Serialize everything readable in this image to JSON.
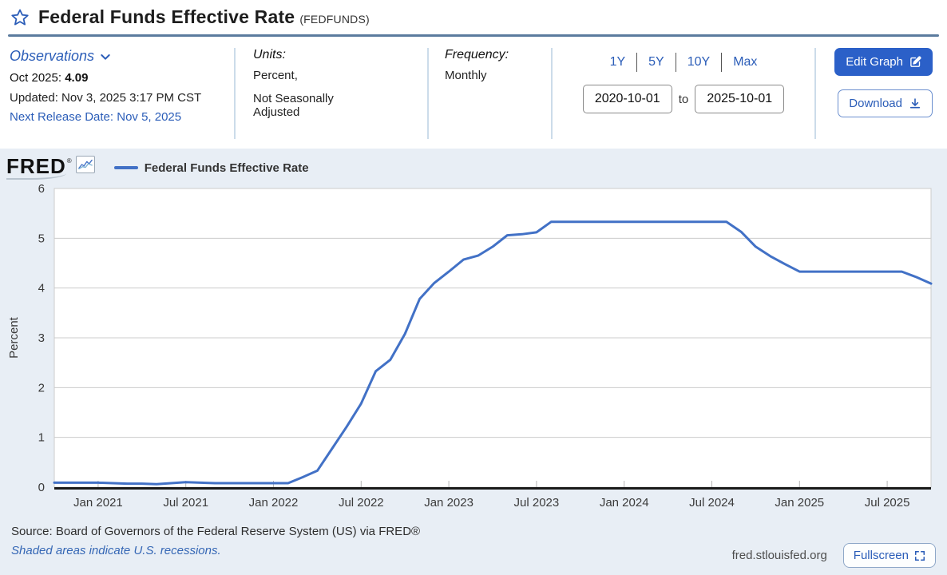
{
  "header": {
    "title": "Federal Funds Effective Rate",
    "series_id": "(FEDFUNDS)"
  },
  "observations": {
    "label": "Observations",
    "latest_period": "Oct 2025:",
    "latest_value": "4.09",
    "updated": "Updated: Nov 3, 2025 3:17 PM CST",
    "next_release": "Next Release Date: Nov 5, 2025"
  },
  "units": {
    "label": "Units:",
    "line1": "Percent,",
    "line2": "Not Seasonally Adjusted"
  },
  "frequency": {
    "label": "Frequency:",
    "value": "Monthly"
  },
  "range": {
    "presets": [
      "1Y",
      "5Y",
      "10Y",
      "Max"
    ],
    "start_date": "2020-10-01",
    "to_label": "to",
    "end_date": "2025-10-01"
  },
  "actions": {
    "edit_graph": "Edit Graph",
    "download": "Download"
  },
  "chart": {
    "brand": "FRED",
    "reg_mark": "®",
    "legend_label": "Federal Funds Effective Rate"
  },
  "footer": {
    "source": "Source: Board of Governors of the Federal Reserve System (US) via FRED®",
    "recessions_note": "Shaded areas indicate U.S. recessions.",
    "site": "fred.stlouisfed.org",
    "fullscreen_label": "Fullscreen"
  },
  "colors": {
    "line": "#4271c6",
    "link_blue": "#2b5db8",
    "button_blue": "#2b60c8",
    "slate_divider": "#5b7b9e",
    "chart_bg": "#e8eef5",
    "grid": "#cccccc",
    "axis": "#1a1a1a",
    "tick_text": "#3a3a3a"
  },
  "chart_data": {
    "type": "line",
    "title": "Federal Funds Effective Rate",
    "ylabel": "Percent",
    "ylim": [
      0,
      6
    ],
    "yticks": [
      0,
      1,
      2,
      3,
      4,
      5,
      6
    ],
    "grid": true,
    "legend_position": "top-left",
    "x": [
      "2020-10",
      "2020-11",
      "2020-12",
      "2021-01",
      "2021-02",
      "2021-03",
      "2021-04",
      "2021-05",
      "2021-06",
      "2021-07",
      "2021-08",
      "2021-09",
      "2021-10",
      "2021-11",
      "2021-12",
      "2022-01",
      "2022-02",
      "2022-03",
      "2022-04",
      "2022-05",
      "2022-06",
      "2022-07",
      "2022-08",
      "2022-09",
      "2022-10",
      "2022-11",
      "2022-12",
      "2023-01",
      "2023-02",
      "2023-03",
      "2023-04",
      "2023-05",
      "2023-06",
      "2023-07",
      "2023-08",
      "2023-09",
      "2023-10",
      "2023-11",
      "2023-12",
      "2024-01",
      "2024-02",
      "2024-03",
      "2024-04",
      "2024-05",
      "2024-06",
      "2024-07",
      "2024-08",
      "2024-09",
      "2024-10",
      "2024-11",
      "2024-12",
      "2025-01",
      "2025-02",
      "2025-03",
      "2025-04",
      "2025-05",
      "2025-06",
      "2025-07",
      "2025-08",
      "2025-09",
      "2025-10"
    ],
    "values": [
      0.09,
      0.09,
      0.09,
      0.09,
      0.08,
      0.07,
      0.07,
      0.06,
      0.08,
      0.1,
      0.09,
      0.08,
      0.08,
      0.08,
      0.08,
      0.08,
      0.08,
      0.2,
      0.33,
      0.77,
      1.21,
      1.68,
      2.33,
      2.56,
      3.08,
      3.78,
      4.1,
      4.33,
      4.57,
      4.65,
      4.83,
      5.06,
      5.08,
      5.12,
      5.33,
      5.33,
      5.33,
      5.33,
      5.33,
      5.33,
      5.33,
      5.33,
      5.33,
      5.33,
      5.33,
      5.33,
      5.33,
      5.13,
      4.83,
      4.64,
      4.48,
      4.33,
      4.33,
      4.33,
      4.33,
      4.33,
      4.33,
      4.33,
      4.33,
      4.22,
      4.09
    ],
    "xtick_labels": [
      "Jan 2021",
      "Jul 2021",
      "Jan 2022",
      "Jul 2022",
      "Jan 2023",
      "Jul 2023",
      "Jan 2024",
      "Jul 2024",
      "Jan 2025",
      "Jul 2025"
    ],
    "xtick_indices": [
      3,
      9,
      15,
      21,
      27,
      33,
      39,
      45,
      51,
      57
    ]
  }
}
